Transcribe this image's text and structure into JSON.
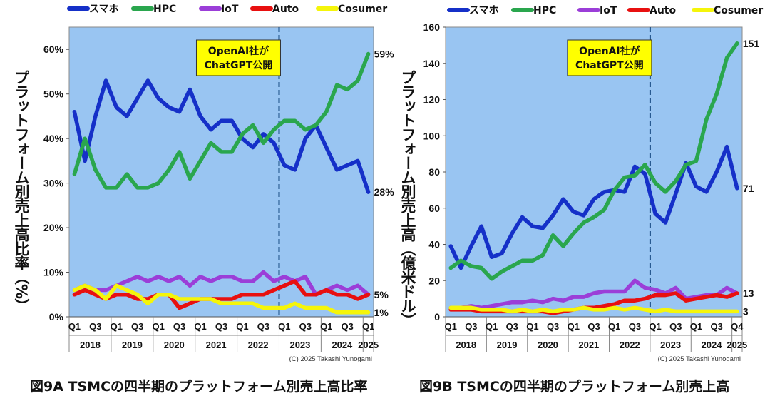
{
  "chart_data": [
    {
      "id": "fig9a",
      "type": "line",
      "caption": "図9A TSMCの四半期のプラットフォーム別売上高比率",
      "ylabel": "プラットフォーム別売上高比率（%）",
      "ylim": [
        0,
        65
      ],
      "yticks": [
        0,
        10,
        20,
        30,
        40,
        50,
        60
      ],
      "ytick_labels": [
        "0%",
        "10%",
        "20%",
        "30%",
        "40%",
        "50%",
        "60%"
      ],
      "quarter_labels": [
        "Q1",
        "Q3",
        "Q1",
        "Q3",
        "Q1",
        "Q3",
        "Q1",
        "Q3",
        "Q1",
        "Q3",
        "Q1",
        "Q3",
        "Q1",
        "Q3",
        "Q1"
      ],
      "years": [
        "2018",
        "2019",
        "2020",
        "2021",
        "2022",
        "2023",
        "2024",
        "2025"
      ],
      "copyright": "(C) 2025 Takashi Yunogami",
      "annotation": "OpenAI社が\nChatGPT公開",
      "event_index": 19.5,
      "grid": false,
      "legend": "top",
      "series": [
        {
          "name": "スマホ",
          "color": "#1530c8",
          "end_label": "28%",
          "values": [
            46,
            35,
            45,
            53,
            47,
            45,
            49,
            53,
            49,
            47,
            46,
            51,
            45,
            42,
            44,
            44,
            40,
            38,
            41,
            39,
            34,
            33,
            40,
            43,
            38,
            33,
            34,
            35,
            28
          ]
        },
        {
          "name": "HPC",
          "color": "#2aa64e",
          "end_label": "59%",
          "values": [
            32,
            40,
            33,
            29,
            29,
            32,
            29,
            29,
            30,
            33,
            37,
            31,
            35,
            39,
            37,
            37,
            41,
            43,
            39,
            42,
            44,
            44,
            42,
            43,
            46,
            52,
            51,
            53,
            59
          ]
        },
        {
          "name": "IoT",
          "color": "#9b3ed8",
          "end_label": "5%",
          "values": [
            6,
            7,
            6,
            6,
            7,
            8,
            9,
            8,
            9,
            8,
            9,
            7,
            9,
            8,
            9,
            9,
            8,
            8,
            10,
            8,
            9,
            8,
            9,
            5,
            6,
            7,
            6,
            7,
            5
          ]
        },
        {
          "name": "Auto",
          "color": "#e81010",
          "end_label": "",
          "values": [
            5,
            6,
            5,
            4,
            5,
            5,
            4,
            4,
            5,
            5,
            2,
            3,
            4,
            4,
            4,
            4,
            5,
            5,
            5,
            6,
            7,
            8,
            5,
            5,
            6,
            5,
            5,
            4,
            5
          ]
        },
        {
          "name": "Cosumer",
          "color": "#f5f50a",
          "end_label": "1%",
          "values": [
            6,
            7,
            6,
            4,
            7,
            6,
            5,
            3,
            5,
            5,
            4,
            4,
            4,
            4,
            3,
            3,
            3,
            3,
            2,
            2,
            2,
            3,
            2,
            2,
            2,
            1,
            1,
            1,
            1
          ]
        }
      ]
    },
    {
      "id": "fig9b",
      "type": "line",
      "caption": "図9B TSMCの四半期のプラットフォーム別売上高",
      "ylabel": "プラットフォーム別売上高（億米ドル）",
      "ylim": [
        0,
        160
      ],
      "yticks": [
        0,
        20,
        40,
        60,
        80,
        100,
        120,
        140,
        160
      ],
      "ytick_labels": [
        "0",
        "20",
        "40",
        "60",
        "80",
        "100",
        "120",
        "140",
        "160"
      ],
      "quarter_labels": [
        "Q1",
        "Q3",
        "Q1",
        "Q3",
        "Q1",
        "Q3",
        "Q1",
        "Q3",
        "Q1",
        "Q3",
        "Q1",
        "Q3",
        "Q1",
        "Q3",
        "Q4"
      ],
      "years": [
        "2018",
        "2019",
        "2020",
        "2021",
        "2022",
        "2023",
        "2024",
        "2025"
      ],
      "copyright": "(C) 2025 Takashi Yunogami",
      "annotation": "OpenAI社が\nChatGPT公開",
      "event_index": 19.5,
      "grid": false,
      "legend": "top",
      "series": [
        {
          "name": "スマホ",
          "color": "#1530c8",
          "end_label": "71",
          "values": [
            39,
            27,
            39,
            50,
            33,
            35,
            46,
            55,
            50,
            49,
            56,
            65,
            58,
            56,
            65,
            69,
            70,
            69,
            83,
            79,
            57,
            52,
            68,
            85,
            72,
            69,
            80,
            94,
            71
          ]
        },
        {
          "name": "HPC",
          "color": "#2aa64e",
          "end_label": "151",
          "values": [
            27,
            31,
            28,
            27,
            21,
            25,
            28,
            31,
            31,
            34,
            45,
            39,
            46,
            52,
            55,
            59,
            70,
            77,
            78,
            84,
            74,
            69,
            75,
            84,
            86,
            109,
            123,
            143,
            151
          ]
        },
        {
          "name": "IoT",
          "color": "#9b3ed8",
          "end_label": "",
          "values": [
            5,
            5,
            6,
            5,
            6,
            7,
            8,
            8,
            9,
            8,
            10,
            9,
            11,
            11,
            13,
            14,
            14,
            14,
            20,
            16,
            15,
            13,
            16,
            10,
            11,
            12,
            12,
            16,
            13
          ]
        },
        {
          "name": "Auto",
          "color": "#e81010",
          "end_label": "13",
          "values": [
            4,
            4,
            4,
            3,
            3,
            3,
            3,
            3,
            3,
            3,
            2,
            3,
            4,
            5,
            5,
            6,
            7,
            9,
            9,
            10,
            12,
            12,
            13,
            9,
            10,
            11,
            12,
            11,
            13
          ]
        },
        {
          "name": "Cosumer",
          "color": "#f5f50a",
          "end_label": "3",
          "values": [
            5,
            5,
            5,
            4,
            4,
            4,
            3,
            4,
            3,
            4,
            3,
            4,
            4,
            5,
            4,
            4,
            5,
            4,
            5,
            4,
            3,
            4,
            3,
            3,
            3,
            3,
            3,
            3,
            3
          ]
        }
      ]
    }
  ]
}
